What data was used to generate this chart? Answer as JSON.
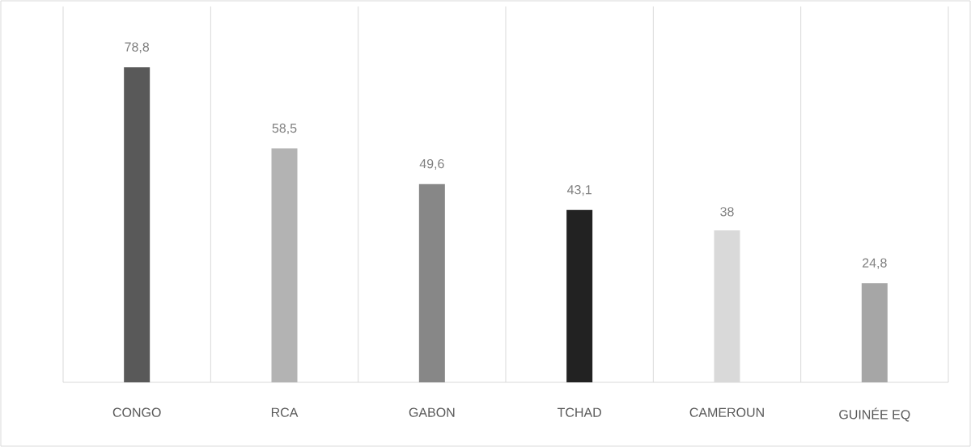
{
  "chart_data": {
    "type": "bar",
    "categories": [
      "CONGO",
      "RCA",
      "GABON",
      "TCHAD",
      "CAMEROUN",
      "GUINÉE EQ"
    ],
    "values": [
      78.8,
      58.5,
      49.6,
      43.1,
      38,
      24.8
    ],
    "value_labels": [
      "78,8",
      "58,5",
      "49,6",
      "43,1",
      "38",
      "24,8"
    ],
    "colors": [
      "#595959",
      "#b3b3b3",
      "#878787",
      "#222222",
      "#d9d9d9",
      "#a6a6a6"
    ],
    "ylim": [
      0,
      94
    ],
    "grid": "x"
  }
}
